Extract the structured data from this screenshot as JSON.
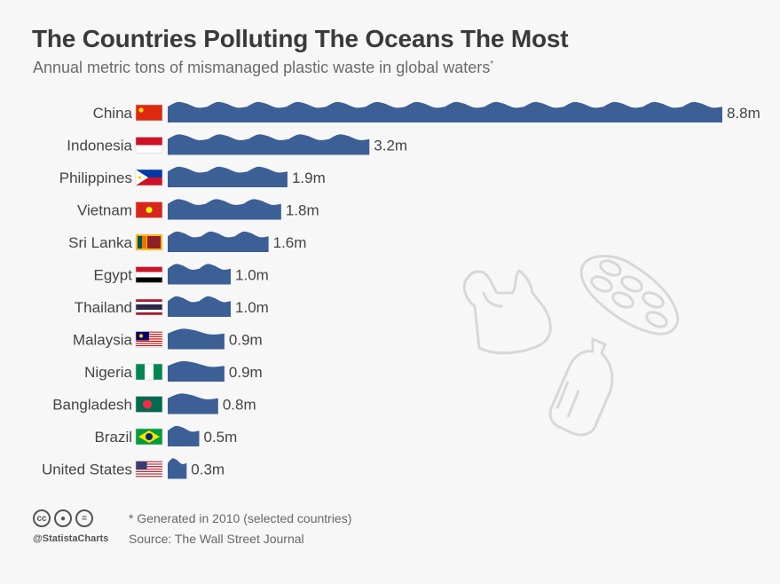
{
  "header": {
    "title": "The Countries Polluting The Oceans The Most",
    "subtitle": "Annual metric tons of mismanaged plastic waste in global waters",
    "subtitle_mark": "*"
  },
  "chart_data": {
    "type": "bar",
    "orientation": "horizontal",
    "title": "The Countries Polluting The Oceans The Most",
    "subtitle": "Annual metric tons of mismanaged plastic waste in global waters*",
    "categories": [
      "China",
      "Indonesia",
      "Philippines",
      "Vietnam",
      "Sri Lanka",
      "Egypt",
      "Thailand",
      "Malaysia",
      "Nigeria",
      "Bangladesh",
      "Brazil",
      "United States"
    ],
    "values": [
      8.8,
      3.2,
      1.9,
      1.8,
      1.6,
      1.0,
      1.0,
      0.9,
      0.9,
      0.8,
      0.5,
      0.3
    ],
    "value_labels": [
      "8.8m",
      "3.2m",
      "1.9m",
      "1.8m",
      "1.6m",
      "1.0m",
      "1.0m",
      "0.9m",
      "0.9m",
      "0.8m",
      "0.5m",
      "0.3m"
    ],
    "unit": "million metric tons",
    "xlim": [
      0,
      8.8
    ],
    "grid": false,
    "bar_color": "#3c5f95",
    "bar_style": "wave"
  },
  "footer": {
    "license_icons": [
      "cc-icon",
      "person-icon",
      "equals-icon"
    ],
    "brand": "@StatistaCharts",
    "note": "* Generated in 2010 (selected countries)",
    "source": "Source: The Wall Street Journal"
  },
  "decorations": [
    "plastic-bag-icon",
    "six-pack-rings-icon",
    "plastic-bottle-icon"
  ],
  "colors": {
    "bar": "#3c5f95",
    "bar_crest": "#2f4f80",
    "text": "#3a3a3a",
    "label": "#444444",
    "background": "#f7f7f7"
  }
}
